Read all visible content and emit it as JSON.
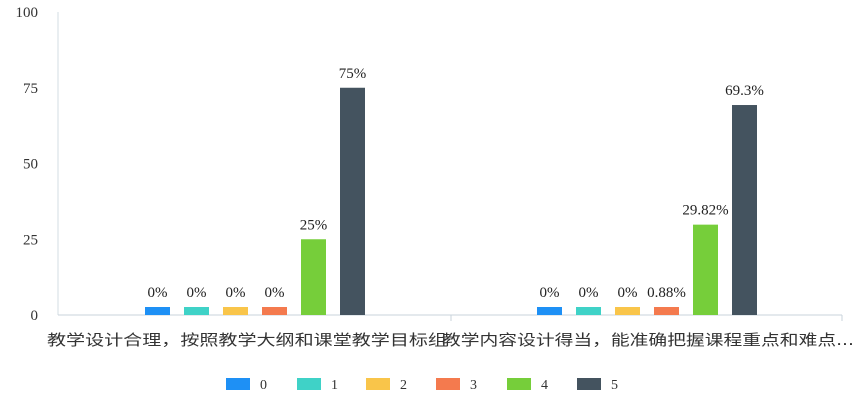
{
  "chart_data": {
    "type": "bar",
    "categories": [
      "教学设计合理，按照教学大纲和课堂教学目标组",
      "教学内容设计得当，能准确把握课程重点和难点..."
    ],
    "series": [
      {
        "name": "0",
        "values": [
          0,
          0
        ],
        "labels": [
          "0%",
          "0%"
        ],
        "color": "#1E90F5"
      },
      {
        "name": "1",
        "values": [
          0,
          0
        ],
        "labels": [
          "0%",
          "0%"
        ],
        "color": "#3FD2C7"
      },
      {
        "name": "2",
        "values": [
          0,
          0
        ],
        "labels": [
          "0%",
          "0%"
        ],
        "color": "#F9C54A"
      },
      {
        "name": "3",
        "values": [
          0,
          0.88
        ],
        "labels": [
          "0%",
          "0.88%"
        ],
        "color": "#F47A4E"
      },
      {
        "name": "4",
        "values": [
          25,
          29.82
        ],
        "labels": [
          "25%",
          "29.82%"
        ],
        "color": "#76CE3A"
      },
      {
        "name": "5",
        "values": [
          75,
          69.3
        ],
        "labels": [
          "75%",
          "69.3%"
        ],
        "color": "#44535F"
      }
    ],
    "yticks": [
      "0",
      "25",
      "50",
      "75",
      "100"
    ],
    "ylim": [
      0,
      100
    ],
    "grid": false,
    "legend": "bottom"
  }
}
